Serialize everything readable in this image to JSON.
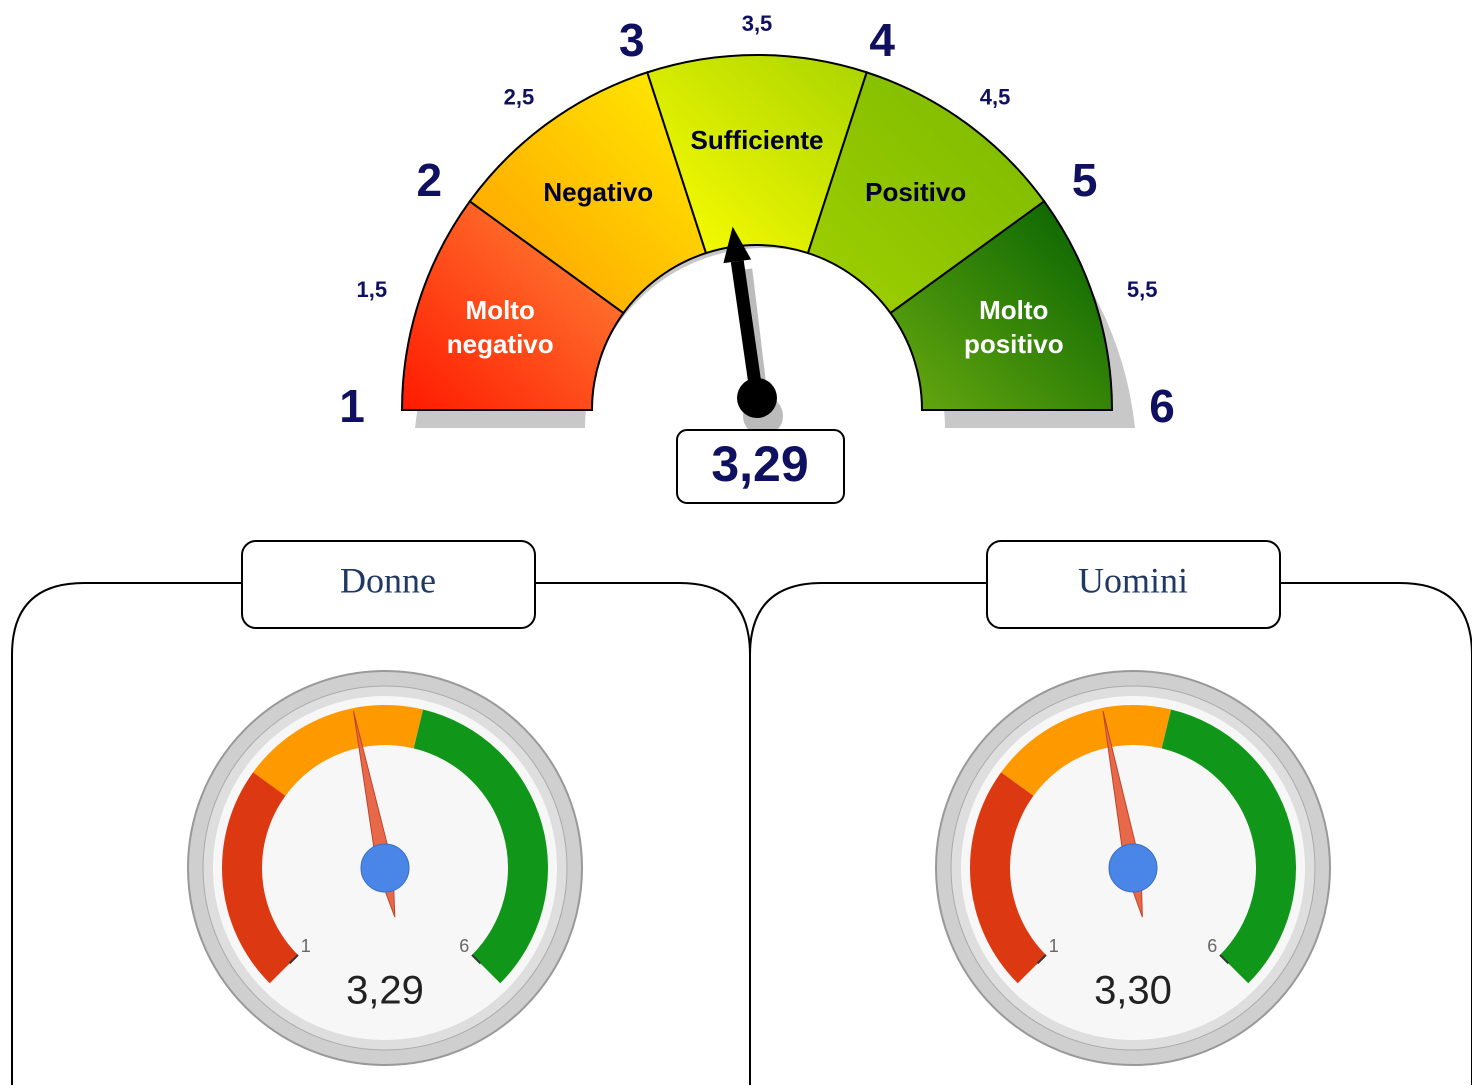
{
  "chart_data": [
    {
      "type": "gauge",
      "ylim": [
        1,
        6
      ],
      "yticks": [
        1,
        {
          "value": 1.5,
          "label": "1,5"
        },
        2,
        {
          "value": 2.5,
          "label": "2,5"
        },
        3,
        {
          "value": 3.5,
          "label": "3,5"
        },
        4,
        {
          "value": 4.5,
          "label": "4,5"
        },
        5,
        {
          "value": 5.5,
          "label": "5,5"
        },
        6
      ],
      "bands": [
        {
          "name": "Molto negativo",
          "from": 1,
          "to": 2,
          "colors": [
            "#ff1a00",
            "#ff8a3a"
          ],
          "text_color": "#ffffff"
        },
        {
          "name": "Negativo",
          "from": 2,
          "to": 3,
          "colors": [
            "#ff9a00",
            "#ffee00"
          ],
          "text_color": "#000033"
        },
        {
          "name": "Sufficiente",
          "from": 3,
          "to": 4,
          "colors": [
            "#ffff00",
            "#a8d400"
          ],
          "text_color": "#000033"
        },
        {
          "name": "Positivo",
          "from": 4,
          "to": 5,
          "colors": [
            "#a0d000",
            "#7ab800"
          ],
          "text_color": "#000033"
        },
        {
          "name": "Molto positivo",
          "from": 5,
          "to": 6,
          "colors": [
            "#6aaa10",
            "#005f00"
          ],
          "text_color": "#ffffff"
        }
      ],
      "value": 3.29,
      "value_label": "3,29"
    },
    {
      "type": "dial",
      "title": "Donne",
      "ylim": [
        1,
        6
      ],
      "yticks": [
        1,
        6
      ],
      "bands": [
        {
          "from": 1,
          "to": 2.5,
          "color": "#dc3912"
        },
        {
          "from": 2.5,
          "to": 3.75,
          "color": "#ff9900"
        },
        {
          "from": 3.75,
          "to": 6,
          "color": "#109618"
        }
      ],
      "value": 3.29,
      "value_label": "3,29"
    },
    {
      "type": "dial",
      "title": "Uomini",
      "ylim": [
        1,
        6
      ],
      "yticks": [
        1,
        6
      ],
      "bands": [
        {
          "from": 1,
          "to": 2.5,
          "color": "#dc3912"
        },
        {
          "from": 2.5,
          "to": 3.75,
          "color": "#ff9900"
        },
        {
          "from": 3.75,
          "to": 6,
          "color": "#109618"
        }
      ],
      "value": 3.3,
      "value_label": "3,30"
    }
  ]
}
